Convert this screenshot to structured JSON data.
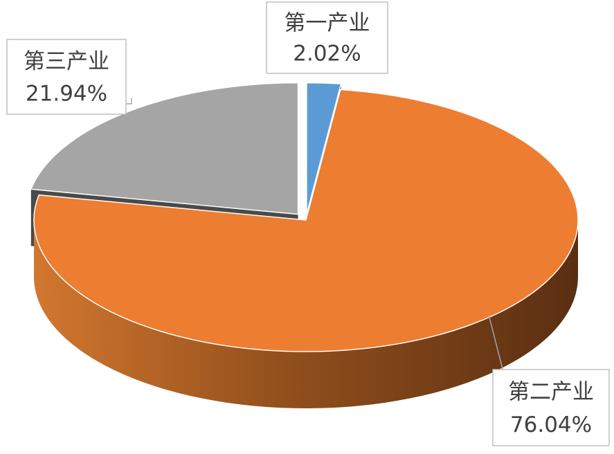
{
  "chart_data": {
    "type": "pie",
    "categories": [
      "第一产业",
      "第二产业",
      "第三产业"
    ],
    "values": [
      2.02,
      76.04,
      21.94
    ],
    "value_labels": [
      "2.02%",
      "76.04%",
      "21.94%"
    ],
    "colors": [
      "#5b9bd5",
      "#ed7d31",
      "#a5a5a5"
    ]
  }
}
